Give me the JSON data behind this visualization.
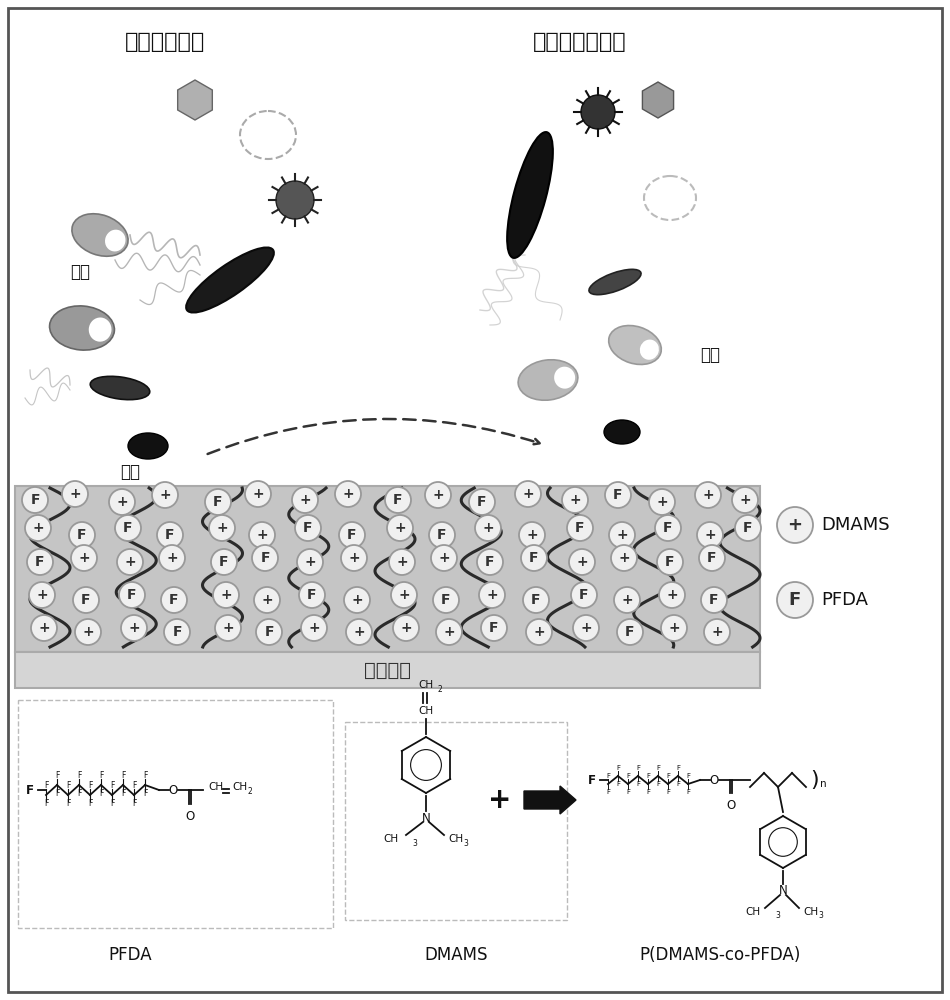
{
  "title_left": "活细菌和病毒",
  "title_right": "灭活细菌和病毒",
  "label_fouling": "污渍",
  "label_blood": "血液",
  "label_antifouling": "防污",
  "label_surface": "材料表面",
  "legend_dmams": "DMAMS",
  "legend_pfda": "PFDA",
  "label_pfda": "PFDA",
  "label_dmams": "DMAMS",
  "label_product": "P(DMAMS-co-PFDA)",
  "bg_color": "#ffffff"
}
